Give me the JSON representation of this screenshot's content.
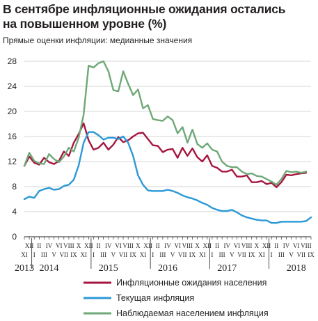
{
  "title_lines": [
    "В сентябре инфляционные ожидания остались",
    "на повышенном уровне (%)"
  ],
  "subtitle": "Прямые оценки инфляции: медианные значения",
  "chart_data": {
    "type": "line",
    "ylim": [
      0,
      28
    ],
    "yticks": [
      0,
      4,
      8,
      12,
      16,
      20,
      24,
      28
    ],
    "grid": true,
    "legend_position": "bottom",
    "x": [
      "2013-11",
      "2013-12",
      "2014-01",
      "2014-02",
      "2014-03",
      "2014-04",
      "2014-05",
      "2014-06",
      "2014-07",
      "2014-08",
      "2014-09",
      "2014-10",
      "2014-11",
      "2014-12",
      "2015-01",
      "2015-02",
      "2015-03",
      "2015-04",
      "2015-05",
      "2015-06",
      "2015-07",
      "2015-08",
      "2015-09",
      "2015-10",
      "2015-11",
      "2015-12",
      "2016-01",
      "2016-02",
      "2016-03",
      "2016-04",
      "2016-05",
      "2016-06",
      "2016-07",
      "2016-08",
      "2016-09",
      "2016-10",
      "2016-11",
      "2016-12",
      "2017-01",
      "2017-02",
      "2017-03",
      "2017-04",
      "2017-05",
      "2017-06",
      "2017-07",
      "2017-08",
      "2017-09",
      "2017-10",
      "2017-11",
      "2017-12",
      "2018-01",
      "2018-02",
      "2018-03",
      "2018-04",
      "2018-05",
      "2018-06",
      "2018-07",
      "2018-08",
      "2018-09"
    ],
    "month_labels": [
      "XI",
      "XII",
      "I",
      "II",
      "III",
      "IV",
      "V",
      "VI",
      "VII",
      "VIII",
      "IX",
      "X",
      "XI",
      "XII",
      "I",
      "II",
      "III",
      "IV",
      "V",
      "VI",
      "VII",
      "VIII",
      "IX",
      "X",
      "XI",
      "XII",
      "I",
      "II",
      "III",
      "IV",
      "V",
      "VI",
      "VII",
      "VIII",
      "IX",
      "X",
      "XI",
      "XII",
      "I",
      "II",
      "III",
      "IV",
      "V",
      "VI",
      "VII",
      "VIII",
      "IX",
      "X",
      "XI",
      "XII",
      "I",
      "II",
      "III",
      "IV",
      "V",
      "VI",
      "VII",
      "VIII",
      "IX"
    ],
    "years": [
      {
        "label": "2013",
        "month": "2013-11"
      },
      {
        "label": "2014",
        "month": "2014-04"
      },
      {
        "label": "2015",
        "month": "2015-04"
      },
      {
        "label": "2016",
        "month": "2016-04"
      },
      {
        "label": "2017",
        "month": "2017-04"
      },
      {
        "label": "2018",
        "month": "2018-06"
      }
    ],
    "series": [
      {
        "name": "Инфляционные ожидания населения",
        "color": "#a6163f",
        "values": [
          11.3,
          12.8,
          11.8,
          11.5,
          12.6,
          11.9,
          11.6,
          12.1,
          13.6,
          12.9,
          15.0,
          16.4,
          18.1,
          15.4,
          13.9,
          14.2,
          15.0,
          13.9,
          14.7,
          15.9,
          15.1,
          15.4,
          16.0,
          16.5,
          16.6,
          15.6,
          14.6,
          14.5,
          13.5,
          13.9,
          14.0,
          12.6,
          14.2,
          12.9,
          14.1,
          12.7,
          12.0,
          13.0,
          11.3,
          11.0,
          10.4,
          10.4,
          10.7,
          9.6,
          9.6,
          9.8,
          8.7,
          8.7,
          8.9,
          8.4,
          8.6,
          7.9,
          8.7,
          9.9,
          9.8,
          10.0,
          10.1,
          10.2,
          null
        ]
      },
      {
        "name": "Текущая инфляция",
        "color": "#2b99d6",
        "values": [
          6.0,
          6.4,
          6.2,
          7.3,
          7.6,
          7.8,
          7.5,
          7.6,
          8.1,
          8.3,
          9.1,
          11.4,
          15.0,
          16.7,
          16.7,
          16.2,
          15.5,
          15.8,
          15.8,
          15.6,
          16.0,
          15.0,
          12.9,
          9.8,
          8.3,
          7.4,
          7.3,
          7.3,
          7.3,
          7.5,
          7.3,
          7.0,
          6.6,
          6.3,
          6.1,
          5.8,
          5.4,
          5.1,
          4.6,
          4.3,
          4.1,
          4.1,
          4.3,
          3.9,
          3.4,
          3.1,
          2.9,
          2.7,
          2.6,
          2.6,
          2.2,
          2.2,
          2.4,
          2.4,
          2.4,
          2.4,
          2.4,
          2.5,
          3.1
        ]
      },
      {
        "name": "Наблюдаемая населением инфляция",
        "color": "#6fa877",
        "values": [
          11.3,
          13.4,
          12.1,
          11.7,
          11.6,
          13.2,
          12.4,
          11.9,
          12.8,
          14.2,
          13.6,
          15.8,
          19.5,
          27.3,
          27.0,
          27.7,
          28.0,
          26.4,
          23.4,
          23.2,
          26.4,
          24.4,
          22.6,
          23.5,
          20.5,
          21.0,
          18.8,
          18.6,
          18.5,
          19.2,
          18.6,
          16.5,
          17.5,
          15.0,
          17.1,
          14.8,
          14.2,
          14.9,
          13.9,
          13.6,
          12.0,
          11.3,
          11.1,
          11.1,
          10.4,
          10.0,
          10.1,
          9.7,
          9.6,
          9.2,
          8.8,
          8.3,
          9.2,
          10.5,
          10.3,
          10.4,
          10.2,
          10.4,
          null
        ]
      }
    ]
  }
}
